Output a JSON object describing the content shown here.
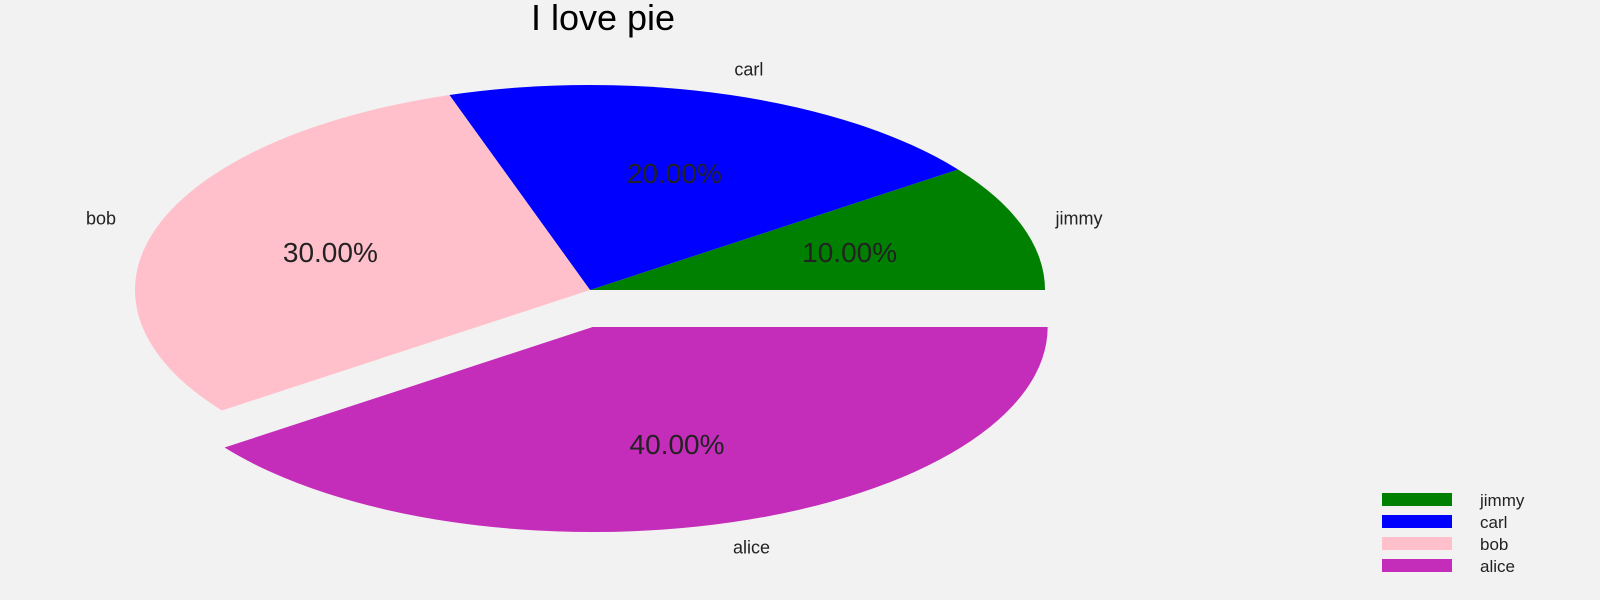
{
  "chart_data": {
    "type": "pie",
    "title": "I love pie",
    "labels": [
      "jimmy",
      "carl",
      "bob",
      "alice"
    ],
    "values": [
      10,
      20,
      30,
      40
    ],
    "percent_labels": [
      "10.00%",
      "20.00%",
      "30.00%",
      "40.00%"
    ],
    "colors": [
      "#008000",
      "#0000ff",
      "#ffc0cb",
      "#c42cba"
    ],
    "explode": [
      0,
      0,
      0,
      0.1
    ],
    "legend": [
      "jimmy",
      "carl",
      "bob",
      "alice"
    ],
    "legend_position": "bottom-right"
  }
}
